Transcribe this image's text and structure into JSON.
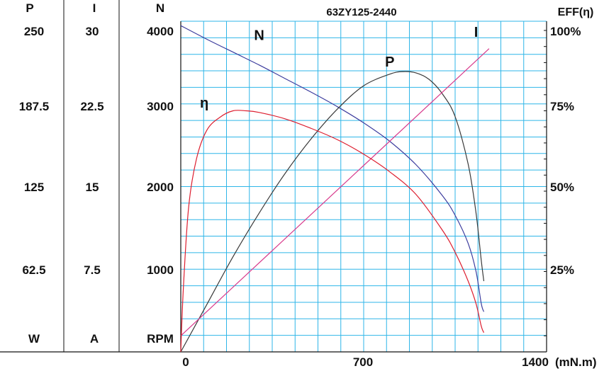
{
  "chart_data": {
    "type": "line",
    "title": "63ZY125-2440",
    "xlabel": "(mN.m)",
    "x_ticks": [
      0,
      700,
      1400
    ],
    "xlim": [
      0,
      1400
    ],
    "left_axes": [
      {
        "header": "P",
        "unit": "W",
        "ticks": [
          "250",
          "187.5",
          "125",
          "62.5"
        ],
        "range": [
          0,
          250
        ]
      },
      {
        "header": "I",
        "unit": "A",
        "ticks": [
          "30",
          "22.5",
          "15",
          "7.5"
        ],
        "range": [
          0,
          30
        ]
      },
      {
        "header": "N",
        "unit": "RPM",
        "ticks": [
          "4000",
          "3000",
          "2000",
          "1000"
        ],
        "range": [
          0,
          4000
        ]
      }
    ],
    "right_axis": {
      "header": "EFF(η)",
      "ticks": [
        "100%",
        "75%",
        "50%",
        "25%"
      ],
      "range": [
        0,
        100
      ]
    },
    "grid": true,
    "series": [
      {
        "name": "N",
        "axis": "N",
        "color": "#3d3d9e",
        "x": [
          0,
          100,
          200,
          300,
          400,
          500,
          600,
          700,
          800,
          900,
          1000,
          1050,
          1100,
          1130,
          1150,
          1160
        ],
        "y": [
          4060,
          3890,
          3730,
          3570,
          3400,
          3230,
          3050,
          2850,
          2620,
          2330,
          1950,
          1700,
          1350,
          1000,
          600,
          500
        ]
      },
      {
        "name": "P",
        "axis": "P",
        "color": "#3a3a3a",
        "x": [
          0,
          100,
          200,
          300,
          400,
          500,
          600,
          700,
          800,
          850,
          900,
          950,
          1000,
          1050,
          1100,
          1130,
          1150,
          1160
        ],
        "y": [
          0,
          37,
          74,
          108,
          139,
          166,
          189,
          207,
          216,
          218,
          217,
          212,
          201,
          183,
          146,
          108,
          71,
          55
        ]
      },
      {
        "name": "I",
        "axis": "I",
        "color": "#d83a8c",
        "x": [
          0,
          1180
        ],
        "y": [
          1.5,
          28.3
        ]
      },
      {
        "name": "η",
        "axis": "EFF",
        "color": "#dd1e2f",
        "x": [
          0,
          10,
          30,
          60,
          100,
          150,
          200,
          250,
          300,
          400,
          500,
          600,
          700,
          800,
          900,
          1000,
          1050,
          1100,
          1130,
          1150,
          1160
        ],
        "y": [
          0,
          20,
          45,
          60,
          69,
          73,
          75,
          75,
          74.5,
          72.5,
          69.5,
          66,
          61.5,
          56,
          49,
          38,
          31,
          22,
          15,
          8,
          6
        ]
      }
    ],
    "series_labels": [
      {
        "name": "N",
        "at_x": 300,
        "at_axis_value": 3880,
        "axis": "N"
      },
      {
        "name": "P",
        "at_x": 800,
        "at_axis_value": 222,
        "axis": "P"
      },
      {
        "name": "I",
        "at_x": 1130,
        "at_axis_value": 29.4,
        "axis": "I"
      },
      {
        "name": "η",
        "at_x": 90,
        "at_axis_value": 76,
        "axis": "EFF"
      }
    ]
  }
}
